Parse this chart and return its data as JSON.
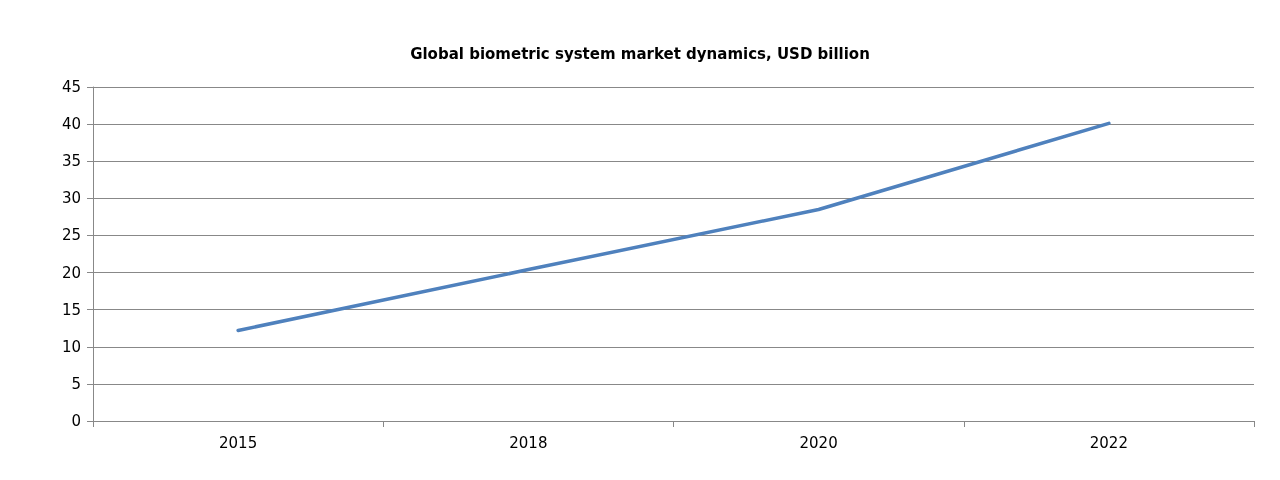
{
  "chart_data": {
    "type": "line",
    "title": "Global biometric system market dynamics, USD billion",
    "categories": [
      "2015",
      "2018",
      "2020",
      "2022"
    ],
    "series": [
      {
        "color": "#4f81bd",
        "values": [
          12.2,
          20.4,
          28.5,
          40.1
        ]
      }
    ],
    "ylim": [
      0,
      45
    ],
    "yticks": [
      0,
      5,
      10,
      15,
      20,
      25,
      30,
      35,
      40,
      45
    ],
    "grid": "y",
    "marker": "none",
    "line_style": "solid"
  }
}
